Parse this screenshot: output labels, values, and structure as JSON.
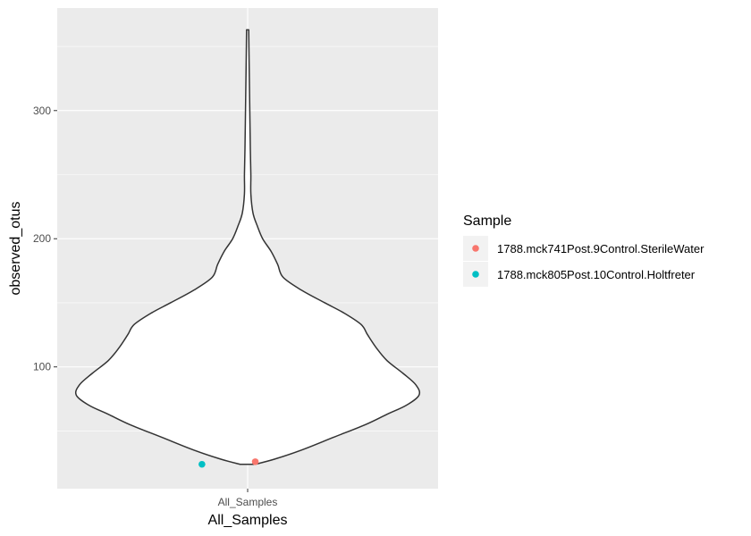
{
  "chart_data": {
    "type": "violin",
    "x_categories": [
      "All_Samples"
    ],
    "xlabel": "All_Samples",
    "ylabel": "observed_otus",
    "ylim": [
      5,
      380
    ],
    "y_ticks": [
      100,
      200,
      300
    ],
    "y_tick_labels": [
      "100",
      "200",
      "300"
    ],
    "violin": {
      "category": "All_Samples",
      "min": 24,
      "max": 363,
      "outline_color": "#333333",
      "fill_color": "#ffffff",
      "density_profile": [
        {
          "y": 24,
          "half_width": 0.07
        },
        {
          "y": 28,
          "half_width": 0.25
        },
        {
          "y": 35,
          "half_width": 0.5
        },
        {
          "y": 45,
          "half_width": 0.8
        },
        {
          "y": 55,
          "half_width": 1.1
        },
        {
          "y": 63,
          "half_width": 1.3
        },
        {
          "y": 70,
          "half_width": 1.48
        },
        {
          "y": 78,
          "half_width": 1.6
        },
        {
          "y": 86,
          "half_width": 1.57
        },
        {
          "y": 95,
          "half_width": 1.45
        },
        {
          "y": 105,
          "half_width": 1.3
        },
        {
          "y": 115,
          "half_width": 1.2
        },
        {
          "y": 125,
          "half_width": 1.12
        },
        {
          "y": 133,
          "half_width": 1.06
        },
        {
          "y": 142,
          "half_width": 0.9
        },
        {
          "y": 150,
          "half_width": 0.72
        },
        {
          "y": 160,
          "half_width": 0.5
        },
        {
          "y": 170,
          "half_width": 0.33
        },
        {
          "y": 180,
          "half_width": 0.28
        },
        {
          "y": 190,
          "half_width": 0.22
        },
        {
          "y": 200,
          "half_width": 0.14
        },
        {
          "y": 210,
          "half_width": 0.09
        },
        {
          "y": 220,
          "half_width": 0.05
        },
        {
          "y": 235,
          "half_width": 0.03
        },
        {
          "y": 250,
          "half_width": 0.03
        },
        {
          "y": 270,
          "half_width": 0.025
        },
        {
          "y": 300,
          "half_width": 0.02
        },
        {
          "y": 330,
          "half_width": 0.015
        },
        {
          "y": 363,
          "half_width": 0.01
        }
      ]
    },
    "points": [
      {
        "sample": "1788.mck741Post.9Control.SterileWater",
        "x_offset": 0.02,
        "y": 26,
        "color": "#f8766d"
      },
      {
        "sample": "1788.mck805Post.10Control.Holtfreter",
        "x_offset": -0.12,
        "y": 24,
        "color": "#00bfc4"
      }
    ],
    "legend": {
      "title": "Sample",
      "position": "right",
      "entries": [
        {
          "label": "1788.mck741Post.9Control.SterileWater",
          "color": "#f8766d"
        },
        {
          "label": "1788.mck805Post.10Control.Holtfreter",
          "color": "#00bfc4"
        }
      ]
    },
    "grid": true,
    "panel_background": "#ebebeb",
    "gridline_color": "#ffffff"
  }
}
